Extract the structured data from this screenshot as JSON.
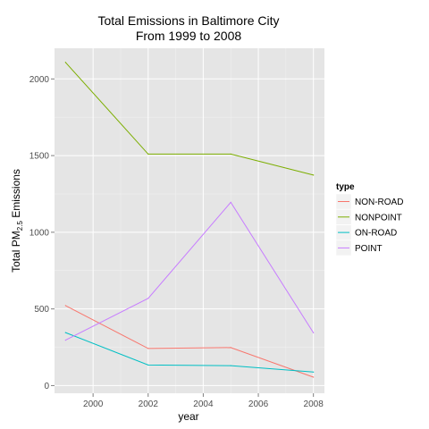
{
  "chart_data": {
    "type": "line",
    "title": "Total Emissions in Baltimore City",
    "subtitle": "From 1999 to 2008",
    "xlabel": "year",
    "ylabel_main": "Total PM",
    "ylabel_sub": "2.5",
    "ylabel_tail": " Emissions",
    "x": [
      1999,
      2002,
      2005,
      2008
    ],
    "xlim": [
      1998.6,
      2008.4
    ],
    "ylim": [
      -50,
      2200
    ],
    "xticks": [
      2000,
      2002,
      2004,
      2006,
      2008
    ],
    "yticks": [
      0,
      500,
      1000,
      1500,
      2000
    ],
    "grid": true,
    "legend_title": "type",
    "legend_position": "right",
    "series": [
      {
        "name": "NON-ROAD",
        "color": "#F8766D",
        "values": [
          522,
          242,
          248,
          55
        ]
      },
      {
        "name": "NONPOINT",
        "color": "#7CAE00",
        "values": [
          2108,
          1510,
          1510,
          1373
        ]
      },
      {
        "name": "ON-ROAD",
        "color": "#00BFC4",
        "values": [
          346,
          134,
          130,
          88
        ]
      },
      {
        "name": "POINT",
        "color": "#C77CFF",
        "values": [
          296,
          569,
          1195,
          344
        ]
      }
    ]
  }
}
